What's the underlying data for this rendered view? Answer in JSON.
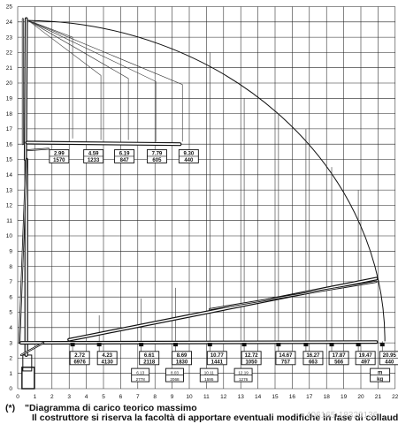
{
  "axes": {
    "x_ticks": [
      "0",
      "1",
      "2",
      "3",
      "4",
      "5",
      "6",
      "7",
      "8",
      "9",
      "10",
      "11",
      "12",
      "13",
      "14",
      "15",
      "16",
      "17",
      "18",
      "19",
      "20",
      "21",
      "22"
    ],
    "y_ticks": [
      "0",
      "1",
      "2",
      "3",
      "4",
      "5",
      "6",
      "7",
      "8",
      "9",
      "10",
      "11",
      "12",
      "13",
      "14",
      "15",
      "16",
      "17",
      "18",
      "19",
      "20",
      "21",
      "22",
      "23",
      "24",
      "25"
    ]
  },
  "upper_loads": [
    {
      "reach": "2.99",
      "kg": "1570",
      "x": 3.2,
      "bx": 1.9,
      "y": 16.2,
      "ty": 23.0
    },
    {
      "reach": "4.59",
      "kg": "1233",
      "x": 4.85,
      "bx": 3.9,
      "y": 16.1,
      "ty": 20.5
    },
    {
      "reach": "6.19",
      "kg": "847",
      "x": 6.45,
      "bx": 5.7,
      "y": 16.1,
      "ty": 20.3
    },
    {
      "reach": "7.79",
      "kg": "605",
      "x": 8.05,
      "bx": 7.6,
      "y": 16.0,
      "ty": 20.1
    },
    {
      "reach": "9.30",
      "kg": "440",
      "x": 9.6,
      "bx": 9.45,
      "y": 16.0,
      "ty": 19.9
    }
  ],
  "lower_loads": [
    {
      "reach": "2.72",
      "kg": "6976",
      "x": 3.2,
      "bx": 3.1,
      "y": 3.1,
      "ty": 3.0
    },
    {
      "reach": "4.23",
      "kg": "4130",
      "x": 4.75,
      "bx": 4.7,
      "y": 3.2,
      "ty": 4.8
    },
    {
      "reach": "6.61",
      "kg": "2118",
      "x": 7.2,
      "bx": 7.15,
      "y": 3.2,
      "ty": 5.9
    },
    {
      "reach": "8.69",
      "kg": "1830",
      "x": 9.2,
      "bx": 9.05,
      "y": 3.2,
      "ty": 6.6
    },
    {
      "reach": "10.77",
      "kg": "1441",
      "x": 11.2,
      "bx": 11.1,
      "y": 3.2,
      "ty": 22.0
    },
    {
      "reach": "12.72",
      "kg": "1050",
      "x": 13.2,
      "bx": 13.1,
      "y": 3.2,
      "ty": 19.0
    },
    {
      "reach": "14.67",
      "kg": "757",
      "x": 15.2,
      "bx": 15.1,
      "y": 3.2,
      "ty": 18.0
    },
    {
      "reach": "16.27",
      "kg": "663",
      "x": 16.8,
      "bx": 16.7,
      "y": 3.2,
      "ty": 17.0
    },
    {
      "reach": "17.87",
      "kg": "566",
      "x": 18.3,
      "bx": 18.2,
      "y": 3.2,
      "ty": 14.5
    },
    {
      "reach": "19.47",
      "kg": "497",
      "x": 19.85,
      "bx": 19.75,
      "y": 3.2,
      "ty": 13.0
    },
    {
      "reach": "20.95",
      "kg": "440",
      "x": 21.25,
      "bx": 21.15,
      "y": 3.2,
      "ty": 3.1
    }
  ],
  "sub_loads": [
    {
      "reach": "6.13",
      "kg": "2778",
      "x": 7.2
    },
    {
      "reach": "8.03",
      "kg": "2068",
      "x": 9.2
    },
    {
      "reach": "10.11",
      "kg": "1595",
      "x": 11.2
    },
    {
      "reach": "12.19",
      "kg": "1276",
      "x": 13.2
    }
  ],
  "units": {
    "length": "m",
    "weight": "kg"
  },
  "footnote": {
    "mark": "(*)",
    "line1": "\"Diagramma di carico teorico massimo",
    "line2": "Il costruttore si riserva la facoltà di apportare eventuali modifiche in fase di collaudo\""
  },
  "watermark": "406165-18320136"
}
